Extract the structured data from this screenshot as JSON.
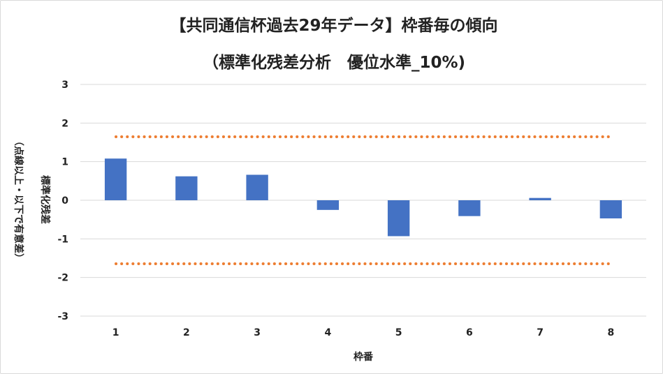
{
  "chart_data": {
    "type": "bar",
    "title_line1": "【共同通信杯過去29年データ】枠番毎の傾向",
    "title_line2": "（標準化残差分析　優位水準_10%)",
    "xlabel": "枠番",
    "ylabel": "標準化残差",
    "ylabel_note": "（点線以上・以下で有意差）",
    "categories": [
      "1",
      "2",
      "3",
      "4",
      "5",
      "6",
      "7",
      "8"
    ],
    "values": [
      1.08,
      0.62,
      0.66,
      -0.25,
      -0.93,
      -0.41,
      0.06,
      -0.47
    ],
    "ylim": [
      -3,
      3
    ],
    "yticks": [
      3,
      2,
      1,
      0,
      -1,
      -2,
      -3
    ],
    "threshold_upper": 1.645,
    "threshold_lower": -1.645,
    "grid": true,
    "legend": "none",
    "bar_color": "#4472c4",
    "threshold_color": "#ed7d31",
    "grid_color": "#d9d9d9"
  }
}
